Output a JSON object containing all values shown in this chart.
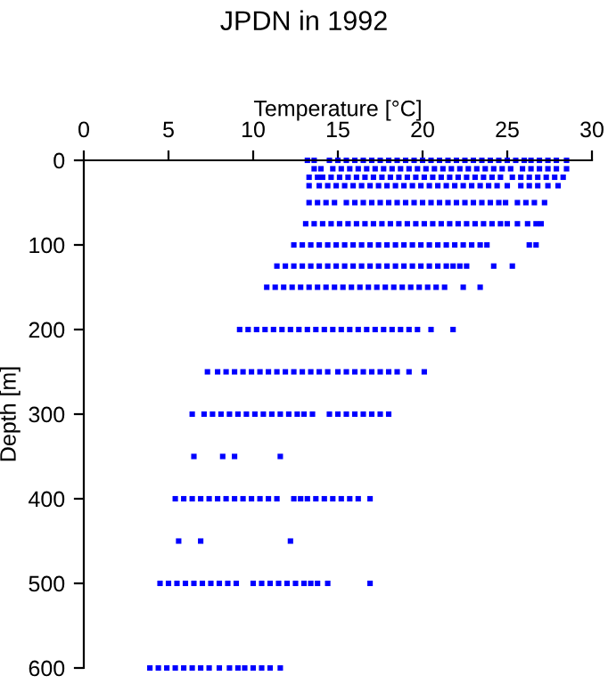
{
  "chart_data": {
    "type": "scatter",
    "title": "JPDN in 1992",
    "xlabel": "Temperature [°C]",
    "ylabel": "Depth [m]",
    "xlim": [
      0,
      30
    ],
    "xticks": [
      0,
      5,
      10,
      15,
      20,
      25,
      30
    ],
    "ylim": [
      600,
      0
    ],
    "yticks": [
      0,
      100,
      200,
      300,
      400,
      500,
      600
    ],
    "marker": "square",
    "grid": false,
    "legend": false,
    "series": [
      {
        "color": "#0000ff",
        "x": [
          13.2,
          13.6,
          14.5,
          15,
          15.5,
          16,
          16.5,
          17,
          17.5,
          18,
          18.5,
          19,
          19.5,
          20,
          20.5,
          21,
          21.5,
          22,
          22.5,
          23,
          23.5,
          24,
          24.5,
          25,
          25.5,
          26,
          26.4,
          26.9,
          27.4,
          27.9,
          28.5
        ],
        "values": [
          0,
          0,
          0,
          0,
          0,
          0,
          0,
          0,
          0,
          0,
          0,
          0,
          0,
          0,
          0,
          0,
          0,
          0,
          0,
          0,
          0,
          0,
          0,
          0,
          0,
          0,
          0,
          0,
          0,
          0,
          0
        ]
      },
      {
        "color": "#0000ff",
        "x": [
          13.6,
          14,
          14.7,
          15.2,
          15.7,
          16.2,
          16.7,
          17.2,
          17.7,
          18.2,
          18.7,
          19.2,
          19.7,
          20.2,
          20.7,
          21.2,
          21.7,
          22.2,
          22.7,
          23.2,
          23.7,
          24.2,
          24.7,
          25.2,
          25.9,
          26.4,
          26.9,
          27.4,
          27.9,
          28.5
        ],
        "values": [
          10,
          10,
          10,
          10,
          10,
          10,
          10,
          10,
          10,
          10,
          10,
          10,
          10,
          10,
          10,
          10,
          10,
          10,
          10,
          10,
          10,
          10,
          10,
          10,
          10,
          10,
          10,
          10,
          10,
          10
        ]
      },
      {
        "color": "#0000ff",
        "x": [
          13.3,
          13.8,
          14.1,
          14.6,
          15.1,
          15.6,
          16.1,
          16.6,
          17.1,
          17.6,
          18.1,
          18.6,
          19.1,
          19.6,
          20.1,
          20.6,
          21.1,
          21.6,
          22.1,
          22.6,
          23.1,
          23.6,
          24.1,
          24.6,
          25.3,
          25.8,
          26.3,
          26.8,
          27.3,
          27.8,
          28.3
        ],
        "values": [
          20,
          20,
          20,
          20,
          20,
          20,
          20,
          20,
          20,
          20,
          20,
          20,
          20,
          20,
          20,
          20,
          20,
          20,
          20,
          20,
          20,
          20,
          20,
          20,
          20,
          20,
          20,
          20,
          20,
          20,
          20
        ]
      },
      {
        "color": "#0000ff",
        "x": [
          13.3,
          13.9,
          14.4,
          14.9,
          15.4,
          15.9,
          16.4,
          16.9,
          17.4,
          17.9,
          18.4,
          18.9,
          19.4,
          19.9,
          20.4,
          20.9,
          21.4,
          21.9,
          22.4,
          22.9,
          23.4,
          23.9,
          24.4,
          25,
          25.8,
          26.3,
          26.8,
          27.4,
          28
        ],
        "values": [
          30,
          30,
          30,
          30,
          30,
          30,
          30,
          30,
          30,
          30,
          30,
          30,
          30,
          30,
          30,
          30,
          30,
          30,
          30,
          30,
          30,
          30,
          30,
          30,
          30,
          30,
          30,
          30,
          30
        ]
      },
      {
        "color": "#0000ff",
        "x": [
          13.3,
          13.8,
          14.3,
          14.8,
          15.5,
          16,
          16.5,
          17,
          17.5,
          18,
          18.5,
          19,
          19.5,
          20,
          20.5,
          21,
          21.5,
          22,
          22.5,
          23,
          23.5,
          24,
          24.5,
          24.9,
          25.6,
          26.1,
          26.6,
          27.2
        ],
        "values": [
          50,
          50,
          50,
          50,
          50,
          50,
          50,
          50,
          50,
          50,
          50,
          50,
          50,
          50,
          50,
          50,
          50,
          50,
          50,
          50,
          50,
          50,
          50,
          50,
          50,
          50,
          50,
          50
        ]
      },
      {
        "color": "#0000ff",
        "x": [
          13.1,
          13.6,
          14.1,
          14.6,
          15.1,
          15.6,
          16.1,
          16.6,
          17.1,
          17.6,
          18.1,
          18.6,
          19.1,
          19.6,
          20.1,
          20.6,
          21.1,
          21.6,
          22.1,
          22.6,
          23.1,
          23.6,
          24.1,
          24.6,
          25,
          25.6,
          26.2,
          26.7,
          27
        ],
        "values": [
          75,
          75,
          75,
          75,
          75,
          75,
          75,
          75,
          75,
          75,
          75,
          75,
          75,
          75,
          75,
          75,
          75,
          75,
          75,
          75,
          75,
          75,
          75,
          75,
          75,
          75,
          75,
          75,
          75
        ]
      },
      {
        "color": "#0000ff",
        "x": [
          12.4,
          12.9,
          13.4,
          13.9,
          14.4,
          14.9,
          15.4,
          15.9,
          16.4,
          16.9,
          17.4,
          17.9,
          18.4,
          18.9,
          19.4,
          19.9,
          20.4,
          20.9,
          21.4,
          21.9,
          22.4,
          22.9,
          23.4,
          23.8,
          26.3,
          26.7
        ],
        "values": [
          100,
          100,
          100,
          100,
          100,
          100,
          100,
          100,
          100,
          100,
          100,
          100,
          100,
          100,
          100,
          100,
          100,
          100,
          100,
          100,
          100,
          100,
          100,
          100,
          100,
          100
        ]
      },
      {
        "color": "#0000ff",
        "x": [
          11.4,
          11.9,
          12.4,
          12.9,
          13.4,
          13.9,
          14.4,
          14.9,
          15.4,
          15.9,
          16.4,
          16.9,
          17.4,
          17.9,
          18.4,
          18.9,
          19.4,
          19.9,
          20.4,
          20.9,
          21.4,
          21.8,
          22.2,
          22.6,
          24.2,
          25.3
        ],
        "values": [
          125,
          125,
          125,
          125,
          125,
          125,
          125,
          125,
          125,
          125,
          125,
          125,
          125,
          125,
          125,
          125,
          125,
          125,
          125,
          125,
          125,
          125,
          125,
          125,
          125,
          125
        ]
      },
      {
        "color": "#0000ff",
        "x": [
          10.8,
          11.3,
          11.8,
          12.3,
          12.8,
          13.3,
          13.8,
          14.3,
          14.8,
          15.3,
          15.8,
          16.3,
          16.8,
          17.3,
          17.8,
          18.3,
          18.8,
          19.3,
          19.8,
          20.3,
          20.8,
          21.3,
          22.4,
          23.4
        ],
        "values": [
          150,
          150,
          150,
          150,
          150,
          150,
          150,
          150,
          150,
          150,
          150,
          150,
          150,
          150,
          150,
          150,
          150,
          150,
          150,
          150,
          150,
          150,
          150,
          150
        ]
      },
      {
        "color": "#0000ff",
        "x": [
          9.2,
          9.7,
          10.2,
          10.7,
          11.2,
          11.7,
          12.2,
          12.7,
          13.2,
          13.7,
          14.2,
          14.7,
          15.2,
          15.7,
          16.2,
          16.7,
          17.2,
          17.7,
          18.2,
          18.7,
          19.2,
          19.7,
          20.5,
          21.8
        ],
        "values": [
          200,
          200,
          200,
          200,
          200,
          200,
          200,
          200,
          200,
          200,
          200,
          200,
          200,
          200,
          200,
          200,
          200,
          200,
          200,
          200,
          200,
          200,
          200,
          200
        ]
      },
      {
        "color": "#0000ff",
        "x": [
          7.3,
          7.9,
          8.4,
          8.9,
          9.4,
          9.9,
          10.4,
          10.9,
          11.4,
          11.9,
          12.4,
          12.9,
          13.4,
          13.9,
          14.4,
          15,
          15.5,
          16,
          16.5,
          17,
          17.5,
          18,
          18.5,
          19.2,
          20.1
        ],
        "values": [
          250,
          250,
          250,
          250,
          250,
          250,
          250,
          250,
          250,
          250,
          250,
          250,
          250,
          250,
          250,
          250,
          250,
          250,
          250,
          250,
          250,
          250,
          250,
          250,
          250
        ]
      },
      {
        "color": "#0000ff",
        "x": [
          6.4,
          7.1,
          7.6,
          8.1,
          8.6,
          9.1,
          9.6,
          10.1,
          10.6,
          11.1,
          11.6,
          12.1,
          12.6,
          13,
          13.5,
          14.5,
          15,
          15.5,
          16,
          16.5,
          17,
          17.5,
          18
        ],
        "values": [
          300,
          300,
          300,
          300,
          300,
          300,
          300,
          300,
          300,
          300,
          300,
          300,
          300,
          300,
          300,
          300,
          300,
          300,
          300,
          300,
          300,
          300,
          300
        ]
      },
      {
        "color": "#0000ff",
        "x": [
          6.5,
          8.2,
          8.9,
          11.6
        ],
        "values": [
          350,
          350,
          350,
          350
        ]
      },
      {
        "color": "#0000ff",
        "x": [
          5.4,
          5.9,
          6.4,
          6.9,
          7.4,
          7.9,
          8.4,
          8.9,
          9.4,
          9.9,
          10.4,
          10.9,
          11.4,
          12.4,
          12.8,
          13.2,
          13.7,
          14.2,
          14.7,
          15.2,
          15.7,
          16.2,
          16.9
        ],
        "values": [
          400,
          400,
          400,
          400,
          400,
          400,
          400,
          400,
          400,
          400,
          400,
          400,
          400,
          400,
          400,
          400,
          400,
          400,
          400,
          400,
          400,
          400,
          400
        ]
      },
      {
        "color": "#0000ff",
        "x": [
          5.6,
          6.9,
          12.2
        ],
        "values": [
          450,
          450,
          450
        ]
      },
      {
        "color": "#0000ff",
        "x": [
          4.5,
          5,
          5.5,
          6,
          6.5,
          7,
          7.5,
          8,
          8.5,
          9,
          10,
          10.5,
          11,
          11.5,
          12,
          12.5,
          13,
          13.4,
          13.8,
          14.4,
          16.9
        ],
        "values": [
          500,
          500,
          500,
          500,
          500,
          500,
          500,
          500,
          500,
          500,
          500,
          500,
          500,
          500,
          500,
          500,
          500,
          500,
          500,
          500,
          500
        ]
      },
      {
        "color": "#0000ff",
        "x": [
          3.9,
          4.4,
          4.9,
          5.4,
          5.9,
          6.4,
          6.9,
          7.4,
          8,
          8.6,
          9.1,
          9.5,
          10,
          10.5,
          11,
          11.6
        ],
        "values": [
          600,
          600,
          600,
          600,
          600,
          600,
          600,
          600,
          600,
          600,
          600,
          600,
          600,
          600,
          600,
          600
        ]
      }
    ]
  }
}
